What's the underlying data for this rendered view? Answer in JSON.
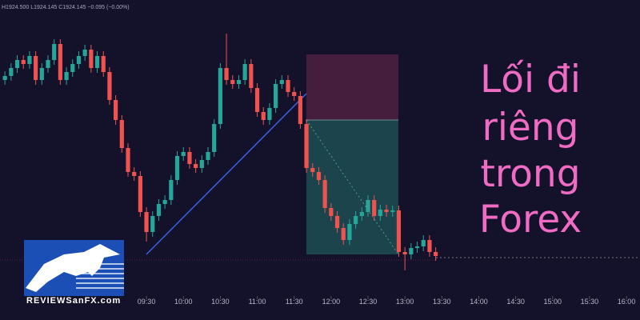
{
  "ohlc_legend": "H1924.500  L1924.145  C1924.145  −0.095 (−0.00%)",
  "headline": [
    "Lối đi",
    "riêng",
    "trong",
    "Forex"
  ],
  "logo": {
    "brand": "REVIEWSanFX.com"
  },
  "chart_data": {
    "type": "candlestick",
    "up_color": "#26a69a",
    "down_color": "#ef5350",
    "xlim": [
      451,
      971
    ],
    "ylim": [
      0,
      370
    ],
    "xticks": [
      {
        "value": 570,
        "label": "09:30"
      },
      {
        "value": 600,
        "label": "10:00"
      },
      {
        "value": 630,
        "label": "10:30"
      },
      {
        "value": 660,
        "label": "11:00"
      },
      {
        "value": 690,
        "label": "11:30"
      },
      {
        "value": 720,
        "label": "12:00"
      },
      {
        "value": 750,
        "label": "12:30"
      },
      {
        "value": 780,
        "label": "13:00"
      },
      {
        "value": 810,
        "label": "13:30"
      },
      {
        "value": 840,
        "label": "14:00"
      },
      {
        "value": 870,
        "label": "14:30"
      },
      {
        "value": 900,
        "label": "15:00"
      },
      {
        "value": 930,
        "label": "15:30"
      },
      {
        "value": 960,
        "label": "16:00"
      }
    ],
    "x": [
      455,
      460,
      465,
      470,
      475,
      480,
      485,
      490,
      495,
      500,
      505,
      510,
      515,
      520,
      525,
      530,
      535,
      540,
      545,
      550,
      555,
      560,
      565,
      570,
      575,
      580,
      585,
      590,
      595,
      600,
      605,
      610,
      615,
      620,
      625,
      630,
      635,
      640,
      645,
      650,
      655,
      660,
      665,
      670,
      675,
      680,
      685,
      690,
      695,
      700,
      705,
      710,
      715,
      720,
      725,
      730,
      735,
      740,
      745,
      750,
      755,
      760,
      765,
      770,
      775,
      780,
      785,
      790,
      795,
      800,
      805
    ],
    "open": [
      270,
      275,
      285,
      295,
      290,
      300,
      270,
      285,
      295,
      315,
      270,
      280,
      290,
      300,
      308,
      285,
      300,
      280,
      245,
      220,
      185,
      155,
      150,
      105,
      80,
      100,
      115,
      120,
      145,
      175,
      180,
      165,
      160,
      170,
      180,
      215,
      285,
      270,
      265,
      270,
      290,
      260,
      230,
      220,
      235,
      265,
      270,
      255,
      250,
      215,
      160,
      155,
      145,
      110,
      100,
      85,
      70,
      90,
      100,
      105,
      120,
      100,
      108,
      105,
      107,
      55,
      52,
      60,
      62,
      70,
      55
    ],
    "high": [
      281,
      291,
      301,
      301,
      306,
      306,
      291,
      301,
      321,
      321,
      286,
      296,
      306,
      314,
      314,
      306,
      306,
      286,
      251,
      226,
      191,
      161,
      156,
      111,
      106,
      121,
      126,
      151,
      181,
      186,
      186,
      171,
      176,
      186,
      221,
      291,
      328,
      276,
      276,
      296,
      296,
      266,
      236,
      241,
      271,
      276,
      276,
      261,
      256,
      221,
      166,
      161,
      151,
      116,
      106,
      91,
      96,
      106,
      111,
      126,
      126,
      114,
      114,
      113,
      113,
      61,
      66,
      68,
      76,
      76,
      61
    ],
    "low": [
      264,
      269,
      279,
      284,
      284,
      264,
      264,
      279,
      289,
      264,
      264,
      274,
      284,
      294,
      279,
      279,
      274,
      239,
      214,
      179,
      149,
      144,
      99,
      68,
      74,
      94,
      109,
      114,
      139,
      169,
      159,
      154,
      154,
      164,
      174,
      209,
      264,
      259,
      259,
      264,
      254,
      224,
      214,
      214,
      229,
      259,
      249,
      244,
      209,
      154,
      149,
      139,
      104,
      94,
      79,
      64,
      64,
      84,
      94,
      99,
      94,
      94,
      99,
      99,
      49,
      32,
      46,
      54,
      56,
      49,
      44
    ],
    "close": [
      275,
      285,
      295,
      290,
      300,
      270,
      285,
      295,
      315,
      270,
      280,
      290,
      300,
      308,
      285,
      300,
      280,
      245,
      220,
      185,
      155,
      150,
      105,
      80,
      100,
      115,
      120,
      145,
      175,
      180,
      165,
      160,
      170,
      180,
      215,
      285,
      270,
      265,
      270,
      290,
      260,
      230,
      220,
      235,
      265,
      270,
      255,
      250,
      215,
      160,
      155,
      145,
      110,
      100,
      85,
      70,
      90,
      100,
      105,
      120,
      100,
      108,
      105,
      107,
      55,
      52,
      60,
      62,
      70,
      55,
      50
    ]
  }
}
